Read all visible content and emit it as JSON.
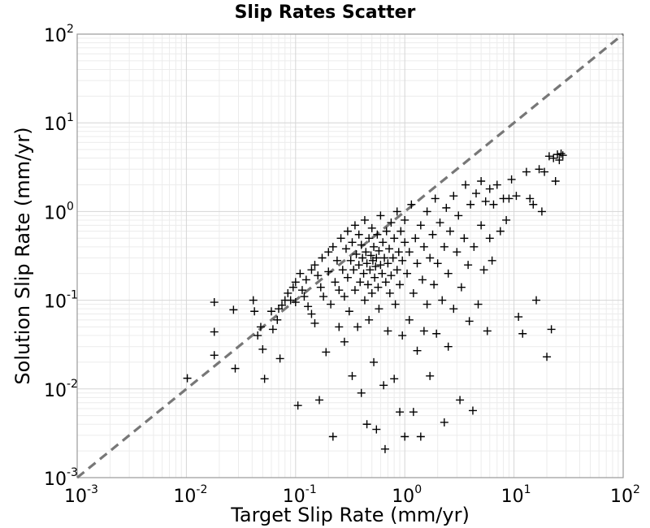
{
  "chart_data": {
    "type": "scatter",
    "title": "Slip Rates Scatter",
    "xlabel": "Target Slip Rate (mm/yr)",
    "ylabel": "Solution Slip Rate (mm/yr)",
    "xscale": "log",
    "yscale": "log",
    "xlim": [
      0.001,
      100
    ],
    "ylim": [
      0.001,
      100
    ],
    "grid": true,
    "marker": "+",
    "marker_color": "#000000",
    "reference_line": {
      "style": "dashed",
      "color": "#777777",
      "from": [
        0.001,
        0.001
      ],
      "to": [
        100,
        100
      ]
    },
    "x_ticks": [
      {
        "base": "10",
        "exp": "-3"
      },
      {
        "base": "10",
        "exp": "-2"
      },
      {
        "base": "10",
        "exp": "-1"
      },
      {
        "base": "10",
        "exp": "0"
      },
      {
        "base": "10",
        "exp": "1"
      },
      {
        "base": "10",
        "exp": "2"
      }
    ],
    "y_ticks": [
      {
        "base": "10",
        "exp": "-3"
      },
      {
        "base": "10",
        "exp": "-2"
      },
      {
        "base": "10",
        "exp": "-1"
      },
      {
        "base": "10",
        "exp": "0"
      },
      {
        "base": "10",
        "exp": "1"
      },
      {
        "base": "10",
        "exp": "2"
      }
    ],
    "points": [
      [
        0.0102,
        0.0132
      ],
      [
        0.018,
        0.095
      ],
      [
        0.018,
        0.044
      ],
      [
        0.018,
        0.024
      ],
      [
        0.027,
        0.078
      ],
      [
        0.028,
        0.017
      ],
      [
        0.041,
        0.1
      ],
      [
        0.042,
        0.075
      ],
      [
        0.045,
        0.04
      ],
      [
        0.048,
        0.05
      ],
      [
        0.05,
        0.028
      ],
      [
        0.052,
        0.013
      ],
      [
        0.06,
        0.075
      ],
      [
        0.062,
        0.047
      ],
      [
        0.068,
        0.06
      ],
      [
        0.07,
        0.08
      ],
      [
        0.072,
        0.022
      ],
      [
        0.075,
        0.088
      ],
      [
        0.08,
        0.1
      ],
      [
        0.085,
        0.12
      ],
      [
        0.09,
        0.1
      ],
      [
        0.095,
        0.14
      ],
      [
        0.1,
        0.16
      ],
      [
        0.1,
        0.095
      ],
      [
        0.105,
        0.0065
      ],
      [
        0.11,
        0.2
      ],
      [
        0.115,
        0.13
      ],
      [
        0.12,
        0.11
      ],
      [
        0.125,
        0.17
      ],
      [
        0.13,
        0.085
      ],
      [
        0.14,
        0.22
      ],
      [
        0.14,
        0.07
      ],
      [
        0.15,
        0.25
      ],
      [
        0.15,
        0.055
      ],
      [
        0.16,
        0.19
      ],
      [
        0.165,
        0.0075
      ],
      [
        0.17,
        0.14
      ],
      [
        0.175,
        0.3
      ],
      [
        0.18,
        0.11
      ],
      [
        0.19,
        0.026
      ],
      [
        0.2,
        0.35
      ],
      [
        0.2,
        0.21
      ],
      [
        0.21,
        0.09
      ],
      [
        0.22,
        0.0029
      ],
      [
        0.22,
        0.4
      ],
      [
        0.23,
        0.16
      ],
      [
        0.24,
        0.28
      ],
      [
        0.25,
        0.05
      ],
      [
        0.25,
        0.13
      ],
      [
        0.26,
        0.5
      ],
      [
        0.27,
        0.22
      ],
      [
        0.28,
        0.034
      ],
      [
        0.28,
        0.11
      ],
      [
        0.29,
        0.38
      ],
      [
        0.3,
        0.6
      ],
      [
        0.3,
        0.18
      ],
      [
        0.31,
        0.075
      ],
      [
        0.32,
        0.28
      ],
      [
        0.33,
        0.45
      ],
      [
        0.33,
        0.014
      ],
      [
        0.34,
        0.22
      ],
      [
        0.35,
        0.7
      ],
      [
        0.35,
        0.13
      ],
      [
        0.36,
        0.33
      ],
      [
        0.37,
        0.05
      ],
      [
        0.38,
        0.25
      ],
      [
        0.38,
        0.55
      ],
      [
        0.39,
        0.16
      ],
      [
        0.4,
        0.42
      ],
      [
        0.4,
        0.009
      ],
      [
        0.41,
        0.3
      ],
      [
        0.42,
        0.2
      ],
      [
        0.43,
        0.8
      ],
      [
        0.43,
        0.1
      ],
      [
        0.44,
        0.35
      ],
      [
        0.45,
        0.26
      ],
      [
        0.45,
        0.004
      ],
      [
        0.46,
        0.15
      ],
      [
        0.47,
        0.5
      ],
      [
        0.47,
        0.06
      ],
      [
        0.48,
        0.22
      ],
      [
        0.49,
        0.32
      ],
      [
        0.5,
        0.65
      ],
      [
        0.5,
        0.12
      ],
      [
        0.51,
        0.28
      ],
      [
        0.52,
        0.4
      ],
      [
        0.52,
        0.02
      ],
      [
        0.53,
        0.18
      ],
      [
        0.54,
        0.24
      ],
      [
        0.55,
        0.3
      ],
      [
        0.55,
        0.0035
      ],
      [
        0.56,
        0.55
      ],
      [
        0.57,
        0.14
      ],
      [
        0.58,
        0.36
      ],
      [
        0.58,
        0.08
      ],
      [
        0.6,
        0.25
      ],
      [
        0.6,
        0.9
      ],
      [
        0.62,
        0.2
      ],
      [
        0.63,
        0.45
      ],
      [
        0.64,
        0.011
      ],
      [
        0.65,
        0.3
      ],
      [
        0.66,
        0.0021
      ],
      [
        0.67,
        0.16
      ],
      [
        0.68,
        0.6
      ],
      [
        0.7,
        0.26
      ],
      [
        0.7,
        0.045
      ],
      [
        0.72,
        0.38
      ],
      [
        0.73,
        0.12
      ],
      [
        0.75,
        0.75
      ],
      [
        0.75,
        0.19
      ],
      [
        0.78,
        0.3
      ],
      [
        0.8,
        0.013
      ],
      [
        0.8,
        0.5
      ],
      [
        0.82,
        0.09
      ],
      [
        0.85,
        0.22
      ],
      [
        0.85,
        1.0
      ],
      [
        0.88,
        0.35
      ],
      [
        0.9,
        0.0055
      ],
      [
        0.9,
        0.15
      ],
      [
        0.92,
        0.6
      ],
      [
        0.95,
        0.28
      ],
      [
        0.95,
        0.04
      ],
      [
        1.0,
        0.45
      ],
      [
        1.0,
        0.0029
      ],
      [
        1.0,
        0.8
      ],
      [
        1.05,
        0.2
      ],
      [
        1.1,
        0.06
      ],
      [
        1.1,
        0.35
      ],
      [
        1.15,
        1.2
      ],
      [
        1.2,
        0.12
      ],
      [
        1.2,
        0.0055
      ],
      [
        1.25,
        0.5
      ],
      [
        1.3,
        0.027
      ],
      [
        1.3,
        0.26
      ],
      [
        1.4,
        0.0029
      ],
      [
        1.4,
        0.7
      ],
      [
        1.45,
        0.17
      ],
      [
        1.5,
        0.4
      ],
      [
        1.5,
        0.045
      ],
      [
        1.6,
        1.0
      ],
      [
        1.6,
        0.09
      ],
      [
        1.7,
        0.3
      ],
      [
        1.7,
        0.014
      ],
      [
        1.8,
        0.55
      ],
      [
        1.85,
        0.15
      ],
      [
        1.9,
        1.4
      ],
      [
        1.95,
        0.042
      ],
      [
        2.0,
        0.26
      ],
      [
        2.1,
        0.75
      ],
      [
        2.2,
        0.1
      ],
      [
        2.3,
        0.0042
      ],
      [
        2.3,
        0.4
      ],
      [
        2.4,
        1.1
      ],
      [
        2.5,
        0.03
      ],
      [
        2.5,
        0.2
      ],
      [
        2.6,
        0.6
      ],
      [
        2.8,
        1.5
      ],
      [
        2.8,
        0.08
      ],
      [
        3.0,
        0.35
      ],
      [
        3.1,
        0.9
      ],
      [
        3.2,
        0.0075
      ],
      [
        3.3,
        0.14
      ],
      [
        3.5,
        0.5
      ],
      [
        3.6,
        2.0
      ],
      [
        3.8,
        0.25
      ],
      [
        3.9,
        0.058
      ],
      [
        4.0,
        1.2
      ],
      [
        4.2,
        0.0057
      ],
      [
        4.3,
        0.4
      ],
      [
        4.5,
        1.6
      ],
      [
        4.7,
        0.09
      ],
      [
        5.0,
        0.7
      ],
      [
        5.0,
        2.2
      ],
      [
        5.3,
        0.22
      ],
      [
        5.5,
        1.3
      ],
      [
        5.7,
        0.045
      ],
      [
        6.0,
        1.8
      ],
      [
        6.0,
        0.5
      ],
      [
        6.3,
        0.28
      ],
      [
        6.5,
        1.2
      ],
      [
        7.0,
        2.0
      ],
      [
        7.5,
        0.6
      ],
      [
        8.0,
        1.4
      ],
      [
        8.5,
        0.8
      ],
      [
        9.0,
        1.4
      ],
      [
        9.5,
        2.3
      ],
      [
        10.5,
        1.5
      ],
      [
        11.0,
        0.065
      ],
      [
        12.0,
        0.042
      ],
      [
        13.0,
        2.8
      ],
      [
        14.0,
        1.4
      ],
      [
        15.0,
        1.2
      ],
      [
        16.0,
        0.1
      ],
      [
        17.0,
        3.0
      ],
      [
        18.0,
        1.0
      ],
      [
        19.0,
        2.8
      ],
      [
        20.0,
        0.023
      ],
      [
        21.0,
        4.2
      ],
      [
        22.0,
        0.047
      ],
      [
        23.0,
        4.0
      ],
      [
        24.0,
        2.2
      ],
      [
        25.0,
        4.4
      ],
      [
        26.0,
        3.8
      ],
      [
        27.0,
        4.5
      ],
      [
        28.0,
        4.3
      ]
    ]
  }
}
